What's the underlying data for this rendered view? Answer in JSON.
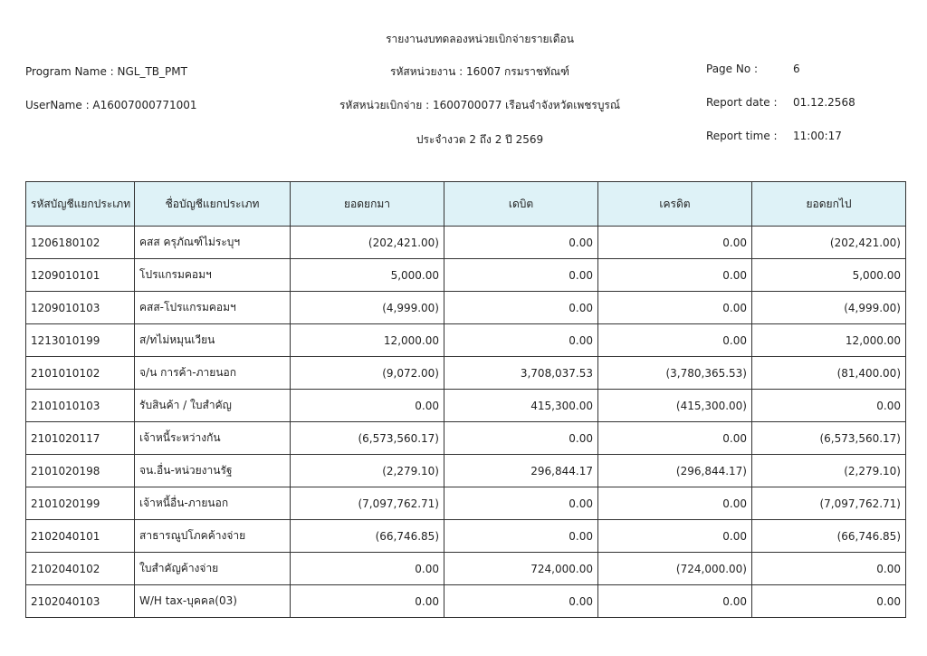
{
  "header": {
    "title": "รายงานงบทดลองหน่วยเบิกจ่ายรายเดือน",
    "program_name": "Program Name : NGL_TB_PMT",
    "username": "UserName : A16007000771001",
    "agency": "รหัสหน่วยงาน : 16007 กรมราชทัณฑ์",
    "disbursement_unit": "รหัสหน่วยเบิกจ่าย : 1600700077 เรือนจำจังหวัดเพชรบูรณ์",
    "period": "ประจำงวด 2 ถึง 2 ปี 2569",
    "page_label": "Page No :",
    "page_value": "6",
    "date_label": "Report date :",
    "date_value": "01.12.2568",
    "time_label": "Report time :",
    "time_value": "11:00:17"
  },
  "table": {
    "columns": [
      "รหัสบัญชีแยกประเภท",
      "ชื่อบัญชีแยกประเภท",
      "ยอดยกมา",
      "เดบิต",
      "เครดิต",
      "ยอดยกไป"
    ],
    "rows": [
      [
        "1206180102",
        "คสส ครุภัณฑ์ไม่ระบุฯ",
        "(202,421.00)",
        "0.00",
        "0.00",
        "(202,421.00)"
      ],
      [
        "1209010101",
        "โปรแกรมคอมฯ",
        "5,000.00",
        "0.00",
        "0.00",
        "5,000.00"
      ],
      [
        "1209010103",
        "คสส-โปรแกรมคอมฯ",
        "(4,999.00)",
        "0.00",
        "0.00",
        "(4,999.00)"
      ],
      [
        "1213010199",
        "ส/ทไม่หมุนเวียน",
        "12,000.00",
        "0.00",
        "0.00",
        "12,000.00"
      ],
      [
        "2101010102",
        "จ/น การค้า-ภายนอก",
        "(9,072.00)",
        "3,708,037.53",
        "(3,780,365.53)",
        "(81,400.00)"
      ],
      [
        "2101010103",
        "รับสินค้า / ใบสำคัญ",
        "0.00",
        "415,300.00",
        "(415,300.00)",
        "0.00"
      ],
      [
        "2101020117",
        "เจ้าหนี้ระหว่างกัน",
        "(6,573,560.17)",
        "0.00",
        "0.00",
        "(6,573,560.17)"
      ],
      [
        "2101020198",
        "จน.อื่น-หน่วยงานรัฐ",
        "(2,279.10)",
        "296,844.17",
        "(296,844.17)",
        "(2,279.10)"
      ],
      [
        "2101020199",
        "เจ้าหนี้อื่น-ภายนอก",
        "(7,097,762.71)",
        "0.00",
        "0.00",
        "(7,097,762.71)"
      ],
      [
        "2102040101",
        "สาธารณูปโภคค้างจ่าย",
        "(66,746.85)",
        "0.00",
        "0.00",
        "(66,746.85)"
      ],
      [
        "2102040102",
        "ใบสำคัญค้างจ่าย",
        "0.00",
        "724,000.00",
        "(724,000.00)",
        "0.00"
      ],
      [
        "2102040103",
        "W/H tax-บุคคล(03)",
        "0.00",
        "0.00",
        "0.00",
        "0.00"
      ]
    ]
  }
}
